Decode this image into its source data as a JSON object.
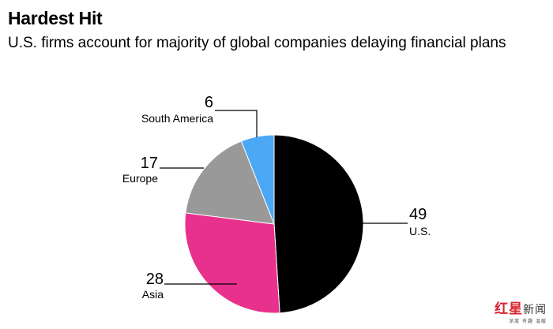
{
  "title": "Hardest Hit",
  "subtitle": "U.S. firms account for majority of global companies delaying financial plans",
  "chart_data": {
    "type": "pie",
    "title": "Hardest Hit",
    "subtitle": "U.S. firms account for majority of global companies delaying financial plans",
    "slices": [
      {
        "label": "U.S.",
        "value": 49,
        "color": "#000000"
      },
      {
        "label": "Asia",
        "value": 28,
        "color": "#e8318d"
      },
      {
        "label": "Europe",
        "value": 17,
        "color": "#999999"
      },
      {
        "label": "South America",
        "value": 6,
        "color": "#4aa8f5"
      }
    ],
    "start_direction": "12 o'clock, clockwise"
  },
  "watermark": {
    "main_red": "红星",
    "main_dark": "新闻",
    "sub": "深度 有趣 温暖"
  }
}
